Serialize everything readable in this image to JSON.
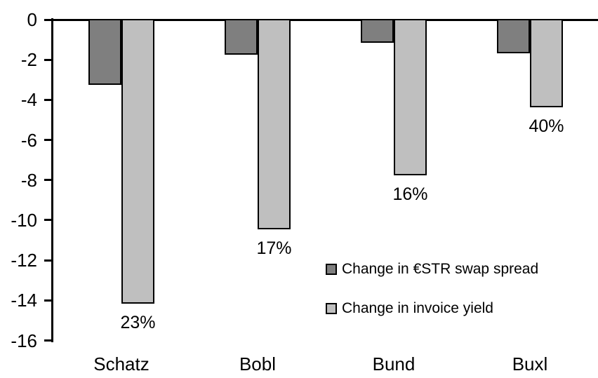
{
  "chart_data": {
    "type": "bar",
    "title": "",
    "xlabel": "",
    "ylabel": "",
    "categories": [
      "Schatz",
      "Bobl",
      "Bund",
      "Buxl"
    ],
    "series": [
      {
        "name": "Change in €STR swap spread",
        "color": "#7f7f7f",
        "values": [
          -3.3,
          -1.8,
          -1.2,
          -1.7
        ]
      },
      {
        "name": "Change in invoice yield",
        "color": "#bfbfbf",
        "values": [
          -14.2,
          -10.5,
          -7.8,
          -4.4
        ],
        "data_labels": [
          "23%",
          "17%",
          "16%",
          "40%"
        ]
      }
    ],
    "ylim": [
      -16,
      0
    ],
    "yticks": [
      "0",
      "-2",
      "-4",
      "-6",
      "-8",
      "-10",
      "-12",
      "-14",
      "-16"
    ],
    "grid": false,
    "legend_position": "inside-right-middle",
    "axis_color": "#000000",
    "bar_border_color": "#000000",
    "background_color": "#ffffff"
  }
}
